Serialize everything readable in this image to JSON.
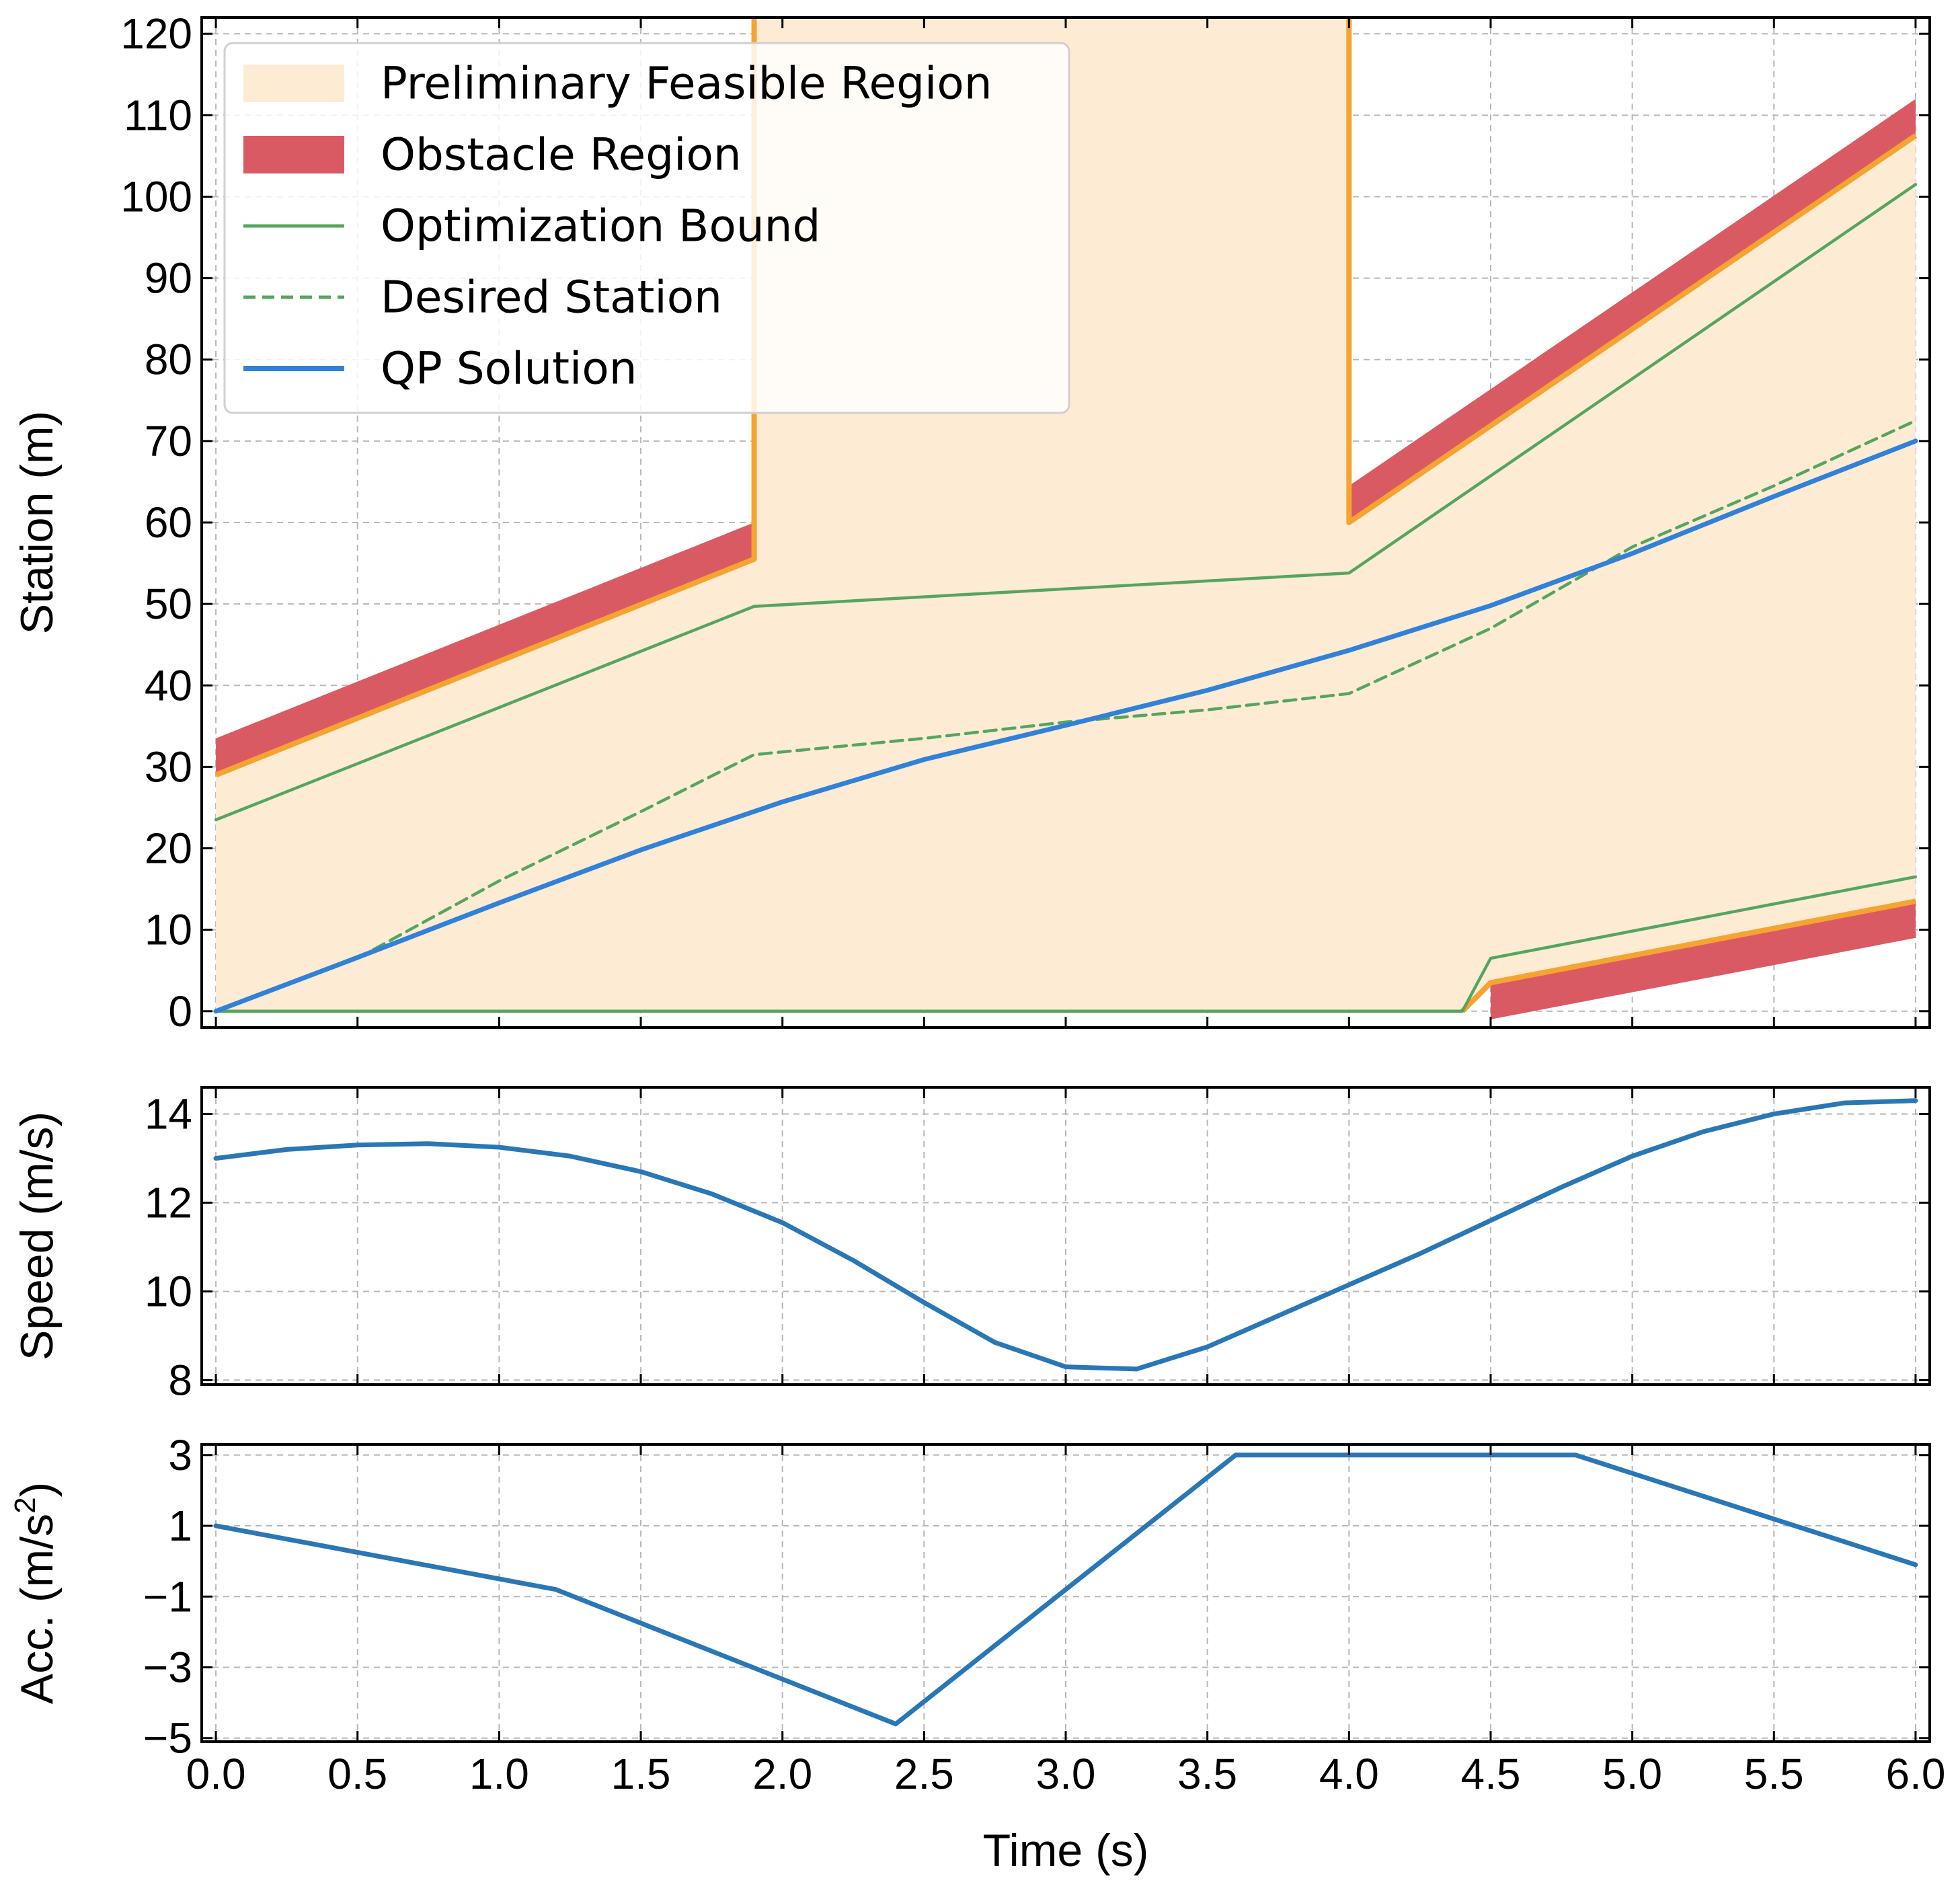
{
  "chart_data": [
    {
      "type": "line",
      "panel": "station",
      "xlabel": "",
      "ylabel": "Station (m)",
      "xlim": [
        -0.05,
        6.05
      ],
      "ylim": [
        -2,
        122
      ],
      "xticks": [
        0.0,
        0.5,
        1.0,
        1.5,
        2.0,
        2.5,
        3.0,
        3.5,
        4.0,
        4.5,
        5.0,
        5.5,
        6.0
      ],
      "yticks": [
        0,
        10,
        20,
        30,
        40,
        50,
        60,
        70,
        80,
        90,
        100,
        110,
        120
      ],
      "ytick_labels": [
        "0",
        "10",
        "20",
        "30",
        "40",
        "50",
        "60",
        "70",
        "80",
        "90",
        "100",
        "110",
        "120"
      ],
      "grid": true,
      "legend_position": "top-left",
      "legend": [
        {
          "label": "Preliminary Feasible Region",
          "color": "#fdebd3",
          "kind": "patch"
        },
        {
          "label": "Obstacle Region",
          "color": "#da5a63",
          "kind": "patch"
        },
        {
          "label": "Optimization Bound",
          "color": "#55a560",
          "kind": "line"
        },
        {
          "label": "Desired Station",
          "color": "#55a560",
          "kind": "dashed"
        },
        {
          "label": "QP Solution",
          "color": "#3181d8",
          "kind": "line"
        }
      ],
      "feasible_region": {
        "x": [
          0,
          1.9,
          1.9,
          4.0,
          4.0,
          6.0,
          6.0,
          4.5,
          4.4,
          0
        ],
        "y": [
          29,
          55.5,
          122,
          122,
          60,
          107.5,
          13.5,
          3.5,
          0,
          0
        ]
      },
      "feasible_boundary": [
        {
          "x": [
            0,
            1.9,
            1.9
          ],
          "y": [
            29,
            55.5,
            122
          ]
        },
        {
          "x": [
            4.0,
            4.0,
            6.0
          ],
          "y": [
            122,
            60,
            107.5
          ]
        },
        {
          "x": [
            4.4,
            4.5,
            6.0
          ],
          "y": [
            0,
            3.5,
            13.5
          ]
        }
      ],
      "obstacles": [
        {
          "x": [
            0,
            1.9
          ],
          "lower": [
            29,
            55.5
          ],
          "upper": [
            33.5,
            60
          ]
        },
        {
          "x": [
            4.0,
            6.0
          ],
          "lower": [
            60,
            107.5
          ],
          "upper": [
            64.5,
            112
          ]
        },
        {
          "x": [
            4.5,
            6.0
          ],
          "lower": [
            -1,
            9
          ],
          "upper": [
            3.5,
            13.5
          ]
        }
      ],
      "series": [
        {
          "name": "Optimization Bound (upper)",
          "style": "line",
          "color": "#55a560",
          "x": [
            0,
            1.9,
            4.0,
            6.0
          ],
          "y": [
            23.5,
            49.7,
            53.8,
            101.5
          ]
        },
        {
          "name": "Optimization Bound (lower)",
          "style": "line",
          "color": "#55a560",
          "x": [
            0,
            4.4,
            4.5,
            6.0
          ],
          "y": [
            0,
            0,
            6.5,
            16.5
          ]
        },
        {
          "name": "Desired Station",
          "style": "dashed",
          "color": "#55a560",
          "x": [
            0,
            0.5,
            1.0,
            1.5,
            1.9,
            2.5,
            3.0,
            3.5,
            4.0,
            4.5,
            5.0,
            5.5,
            6.0
          ],
          "y": [
            0,
            6.5,
            16,
            24.5,
            31.5,
            33.5,
            35.5,
            37,
            39,
            47,
            57,
            64.5,
            72.5
          ]
        },
        {
          "name": "QP Solution",
          "style": "line",
          "color": "#3181d8",
          "x": [
            0,
            0.5,
            1.0,
            1.5,
            2.0,
            2.5,
            3.0,
            3.5,
            4.0,
            4.5,
            5.0,
            5.5,
            6.0
          ],
          "y": [
            0,
            6.6,
            13.3,
            19.8,
            25.7,
            30.9,
            35.1,
            39.4,
            44.3,
            49.8,
            56.2,
            63.2,
            70.0
          ]
        }
      ]
    },
    {
      "type": "line",
      "panel": "speed",
      "xlabel": "",
      "ylabel": "Speed (m/s)",
      "xlim": [
        -0.05,
        6.05
      ],
      "ylim": [
        7.9,
        14.6
      ],
      "xticks": [
        0.0,
        0.5,
        1.0,
        1.5,
        2.0,
        2.5,
        3.0,
        3.5,
        4.0,
        4.5,
        5.0,
        5.5,
        6.0
      ],
      "yticks": [
        8,
        10,
        12,
        14
      ],
      "ytick_labels": [
        "8",
        "10",
        "12",
        "14"
      ],
      "grid": true,
      "series": [
        {
          "name": "Speed",
          "style": "line",
          "color": "#2a77b6",
          "x": [
            0,
            0.25,
            0.5,
            0.75,
            1.0,
            1.25,
            1.5,
            1.75,
            2.0,
            2.25,
            2.5,
            2.75,
            3.0,
            3.25,
            3.5,
            3.75,
            4.0,
            4.25,
            4.5,
            4.75,
            5.0,
            5.25,
            5.5,
            5.75,
            6.0
          ],
          "y": [
            13.0,
            13.2,
            13.3,
            13.33,
            13.25,
            13.05,
            12.7,
            12.2,
            11.55,
            10.7,
            9.75,
            8.85,
            8.3,
            8.25,
            8.75,
            9.45,
            10.15,
            10.85,
            11.6,
            12.35,
            13.05,
            13.6,
            14.0,
            14.25,
            14.3
          ]
        }
      ]
    },
    {
      "type": "line",
      "panel": "acceleration",
      "xlabel": "Time (s)",
      "ylabel": "Acc. (m/s",
      "ylabel_sup": "2",
      "ylabel_end": ")",
      "xlim": [
        -0.05,
        6.05
      ],
      "ylim": [
        -5.1,
        3.3
      ],
      "xticks": [
        0.0,
        0.5,
        1.0,
        1.5,
        2.0,
        2.5,
        3.0,
        3.5,
        4.0,
        4.5,
        5.0,
        5.5,
        6.0
      ],
      "xtick_labels": [
        "0.0",
        "0.5",
        "1.0",
        "1.5",
        "2.0",
        "2.5",
        "3.0",
        "3.5",
        "4.0",
        "4.5",
        "5.0",
        "5.5",
        "6.0"
      ],
      "yticks": [
        -5,
        -3,
        -1,
        1,
        3
      ],
      "ytick_labels": [
        "−5",
        "−3",
        "−1",
        "1",
        "3"
      ],
      "grid": true,
      "series": [
        {
          "name": "Acceleration",
          "style": "line",
          "color": "#2a77b6",
          "x": [
            0,
            1.2,
            2.4,
            3.6,
            4.8,
            6.0
          ],
          "y": [
            1.0,
            -0.8,
            -4.6,
            3.0,
            3.0,
            -0.1
          ]
        }
      ]
    }
  ]
}
